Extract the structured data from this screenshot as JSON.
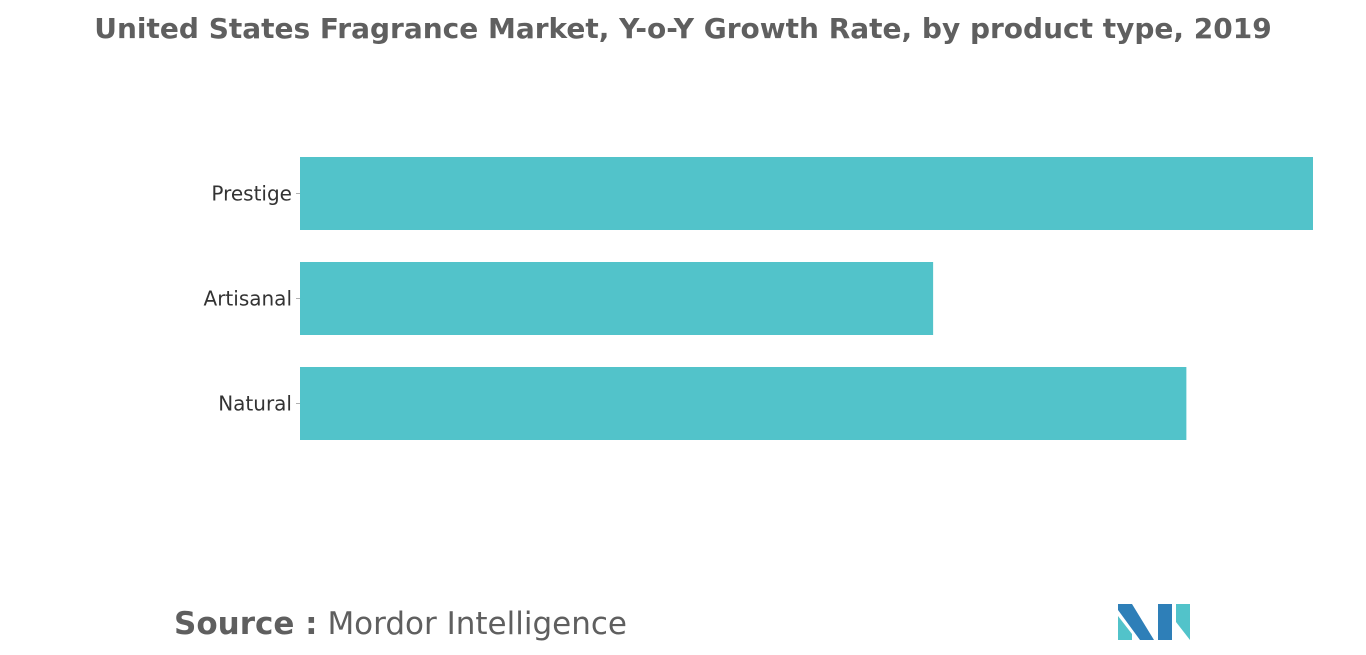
{
  "chart_data": {
    "type": "bar",
    "orientation": "horizontal",
    "title": "United States Fragrance Market, Y-o-Y Growth Rate, by product type, 2019",
    "categories": [
      "Prestige",
      "Artisanal",
      "Natural"
    ],
    "values": [
      8.0,
      5.0,
      7.0
    ],
    "xlim": [
      0,
      8.0
    ],
    "xlabel": "",
    "ylabel": "",
    "grid": false,
    "legend": "none",
    "bar_color": "#52c3ca"
  },
  "source": {
    "label": "Source :",
    "text": "Mordor Intelligence"
  },
  "logo": {
    "icon": "mordor-intelligence-logo-icon",
    "colors": [
      "#2e7fb8",
      "#52c3ca"
    ]
  }
}
